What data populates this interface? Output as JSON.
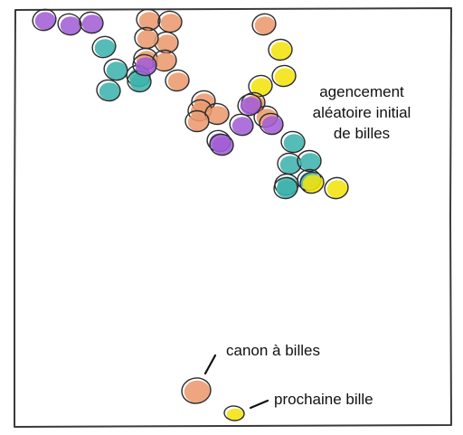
{
  "annotations": {
    "initial_layout": [
      "agencement",
      "aléatoire initial",
      "de billes"
    ],
    "cannon": "canon à billes",
    "next_marble": "prochaine bille"
  },
  "colors": {
    "purple": "#a35ed6",
    "orange": "#eb9a6e",
    "teal": "#3fb3ad",
    "yellow": "#f2e20c",
    "ink": "#2b2b2b",
    "frame": "#3a3a3a"
  },
  "marbles": [
    {
      "color": "purple"
    },
    {
      "color": "purple"
    },
    {
      "color": "purple"
    },
    {
      "color": "orange"
    },
    {
      "color": "orange"
    },
    {
      "color": "orange"
    },
    {
      "color": "orange"
    },
    {
      "color": "orange"
    },
    {
      "color": "orange"
    },
    {
      "color": "orange"
    },
    {
      "color": "orange"
    },
    {
      "color": "orange"
    },
    {
      "color": "orange"
    },
    {
      "color": "teal"
    },
    {
      "color": "teal"
    },
    {
      "color": "teal"
    },
    {
      "color": "teal"
    },
    {
      "color": "teal"
    },
    {
      "color": "purple"
    },
    {
      "color": "orange"
    },
    {
      "color": "orange"
    },
    {
      "color": "yellow"
    },
    {
      "color": "yellow"
    },
    {
      "color": "yellow"
    },
    {
      "color": "orange"
    },
    {
      "color": "orange"
    },
    {
      "color": "purple"
    },
    {
      "color": "purple"
    },
    {
      "color": "purple"
    },
    {
      "color": "purple"
    },
    {
      "color": "purple"
    },
    {
      "color": "teal"
    },
    {
      "color": "teal"
    },
    {
      "color": "teal"
    },
    {
      "color": "teal"
    },
    {
      "color": "teal"
    },
    {
      "color": "teal"
    },
    {
      "color": "yellow"
    },
    {
      "color": "yellow"
    }
  ],
  "cannon": {
    "color": "orange"
  },
  "next_marble": {
    "color": "yellow"
  }
}
